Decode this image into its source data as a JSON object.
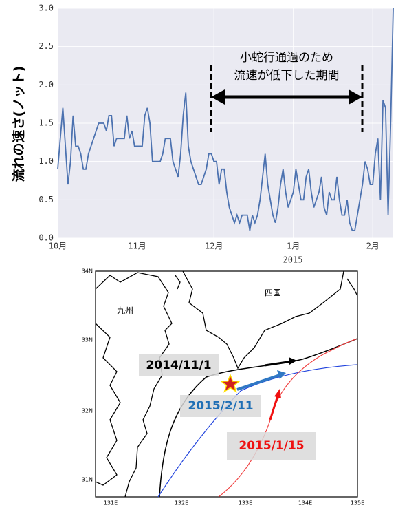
{
  "chart_data": {
    "type": "line",
    "y_label": "流れの速さ(ノット)",
    "values": [
      0.9,
      1.3,
      1.7,
      1.2,
      0.7,
      1.0,
      1.6,
      1.2,
      1.2,
      1.1,
      0.9,
      0.9,
      1.1,
      1.2,
      1.3,
      1.4,
      1.5,
      1.5,
      1.5,
      1.4,
      1.6,
      1.6,
      1.2,
      1.3,
      1.3,
      1.3,
      1.3,
      1.6,
      1.3,
      1.4,
      1.2,
      1.2,
      1.2,
      1.2,
      1.6,
      1.7,
      1.5,
      1.0,
      1.0,
      1.0,
      1.0,
      1.1,
      1.3,
      1.3,
      1.3,
      1.0,
      0.9,
      0.8,
      1.1,
      1.6,
      1.9,
      1.2,
      1.0,
      0.9,
      0.8,
      0.7,
      0.7,
      0.8,
      0.9,
      1.1,
      1.1,
      1.0,
      1.0,
      0.7,
      0.9,
      0.9,
      0.6,
      0.4,
      0.3,
      0.2,
      0.3,
      0.2,
      0.3,
      0.3,
      0.3,
      0.1,
      0.3,
      0.2,
      0.3,
      0.5,
      0.8,
      1.1,
      0.7,
      0.5,
      0.3,
      0.2,
      0.4,
      0.7,
      0.9,
      0.6,
      0.4,
      0.5,
      0.6,
      0.9,
      0.7,
      0.5,
      0.5,
      0.8,
      0.9,
      0.6,
      0.4,
      0.5,
      0.6,
      0.8,
      0.4,
      0.3,
      0.6,
      0.5,
      0.5,
      0.8,
      0.5,
      0.3,
      0.3,
      0.5,
      0.2,
      0.1,
      0.1,
      0.3,
      0.5,
      0.7,
      1.0,
      0.9,
      0.7,
      0.7,
      1.1,
      1.3,
      0.5,
      1.8,
      1.7,
      0.3,
      1.5,
      3.0
    ],
    "color": "#4c72b0",
    "xlim": [
      0,
      131
    ],
    "xticks": [
      {
        "value": 0,
        "label": "10月"
      },
      {
        "value": 31,
        "label": "11月"
      },
      {
        "value": 61,
        "label": "12月"
      },
      {
        "value": 92,
        "label": "1月"
      },
      {
        "value": 123,
        "label": "2月"
      }
    ],
    "x_sublabel": "2015",
    "ylim": [
      0,
      3
    ],
    "yticks": [
      {
        "value": 0,
        "label": "0.0"
      },
      0.5,
      {
        "value": 1,
        "label": "1.0"
      },
      1.5,
      {
        "value": 2,
        "label": "2.0"
      },
      2.5,
      {
        "value": 3,
        "label": "3.0"
      }
    ],
    "grid": true,
    "annotation": [
      "小蛇行通過のため",
      "流速が低下した期間"
    ]
  },
  "map": {
    "lat_ticks": [
      "34N",
      "33N",
      "32N",
      "31N"
    ],
    "lon_ticks": [
      "131E",
      "132E",
      "133E",
      "134E",
      "135E"
    ],
    "places": [
      "九州",
      "四国"
    ],
    "tracks": [
      "2014/11/1",
      "2015/2/11",
      "2015/1/15"
    ]
  }
}
